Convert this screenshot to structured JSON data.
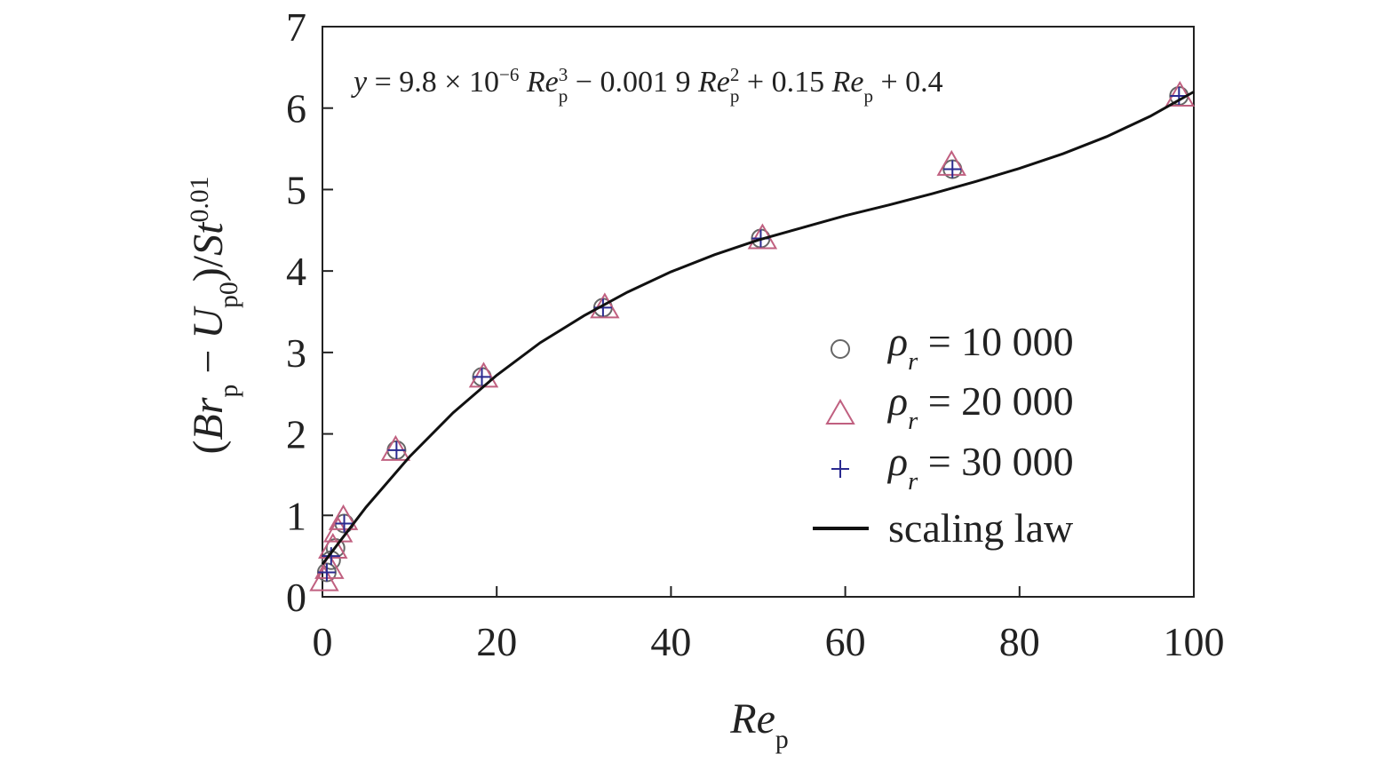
{
  "chart_data": {
    "type": "scatter",
    "annotation": [
      "y",
      " = 9.8 × 10",
      "−6",
      " Re",
      "3",
      "p",
      " − 0.001 9 ",
      "Re",
      "2",
      "p",
      " + 0.15 ",
      "Re",
      "p",
      " + 0.4"
    ],
    "x_label": [
      "Re",
      "p"
    ],
    "y_label": [
      "(",
      "Br",
      "p",
      " − ",
      "U",
      "p0",
      ")/",
      "St",
      "0.01"
    ],
    "xlim": [
      0,
      100
    ],
    "ylim": [
      0,
      7
    ],
    "xticks": [
      0,
      20,
      40,
      60,
      80,
      100
    ],
    "yticks": [
      0,
      1,
      2,
      3,
      4,
      5,
      6,
      7
    ],
    "series": [
      {
        "name": [
          "ρ",
          "r",
          " = 10 000"
        ],
        "marker": "circle",
        "color": "#666666",
        "x": [
          0.5,
          1,
          1.5,
          2.5,
          8.5,
          18.3,
          32.2,
          50.3,
          72.3,
          98.3
        ],
        "values": [
          0.3,
          0.45,
          0.6,
          0.9,
          1.8,
          2.7,
          3.55,
          4.4,
          5.25,
          6.15
        ]
      },
      {
        "name": [
          "ρ",
          "r",
          " = 20 000"
        ],
        "marker": "triangle",
        "color": "#c06080",
        "x": [
          0.2,
          0.8,
          1.2,
          1.8,
          2.4,
          8.4,
          18.5,
          32.4,
          50.5,
          72.2,
          98.4
        ],
        "values": [
          0.2,
          0.35,
          0.6,
          0.8,
          0.95,
          1.8,
          2.7,
          3.55,
          4.4,
          5.3,
          6.15
        ]
      },
      {
        "name": [
          "ρ",
          "r",
          " = 30 000"
        ],
        "marker": "plus",
        "color": "#2a2a90",
        "x": [
          0.5,
          1,
          2.5,
          8.5,
          18.3,
          32.2,
          50.3,
          72.3,
          98.3
        ],
        "values": [
          0.3,
          0.5,
          0.9,
          1.8,
          2.7,
          3.55,
          4.4,
          5.25,
          6.15
        ]
      },
      {
        "name": [
          "scaling law"
        ],
        "marker": "line",
        "color": "#111111",
        "x": [
          0,
          5,
          10,
          15,
          20,
          25,
          30,
          35,
          40,
          45,
          50,
          55,
          60,
          65,
          70,
          75,
          80,
          85,
          90,
          95,
          100
        ],
        "values": [
          0.4,
          1.1,
          1.72,
          2.26,
          2.72,
          3.12,
          3.45,
          3.74,
          3.99,
          4.2,
          4.38,
          4.53,
          4.68,
          4.81,
          4.95,
          5.1,
          5.26,
          5.44,
          5.65,
          5.9,
          6.2
        ]
      }
    ]
  }
}
